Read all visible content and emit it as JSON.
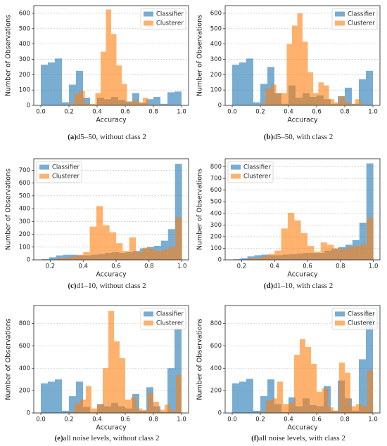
{
  "chart_data": [
    {
      "type": "histogram",
      "caption_label": "(a)",
      "caption": "d5–50, without class 2",
      "xlabel": "Accuracy",
      "ylabel": "Number of Observations",
      "xlim": [
        -0.05,
        1.05
      ],
      "xticks": [
        {
          "value": 0,
          "label": "0.0"
        },
        0.2,
        0.4,
        0.6,
        0.8,
        {
          "value": 1,
          "label": "1.0"
        }
      ],
      "ylim": [
        0,
        650
      ],
      "yticks": [
        0,
        100,
        200,
        300,
        400,
        500,
        600
      ],
      "grid": true,
      "legend": "upper right",
      "series": [
        {
          "name": "Classifier",
          "color": "#1f77b4",
          "alpha": 0.6,
          "bins": [
            0,
            0.05,
            0.1,
            0.15,
            0.2,
            0.25,
            0.3,
            0.35,
            0.4,
            0.45,
            0.5,
            0.55,
            0.6,
            0.65,
            0.7,
            0.75,
            0.8,
            0.85,
            0.9,
            0.95,
            1
          ],
          "values": [
            265,
            280,
            305,
            20,
            135,
            225,
            50,
            5,
            50,
            40,
            55,
            35,
            25,
            80,
            15,
            40,
            55,
            10,
            85,
            90
          ]
        },
        {
          "name": "Clusterer",
          "color": "#ff7f0e",
          "alpha": 0.6,
          "bins": [
            0.2,
            0.2375,
            0.275,
            0.3125,
            0.35,
            0.3875,
            0.425,
            0.4625,
            0.5,
            0.5375,
            0.575,
            0.6125,
            0.65,
            0.6875,
            0.725,
            0.7625,
            0.8,
            0.8375,
            0.875,
            0.9125,
            0.95
          ],
          "values": [
            10,
            75,
            95,
            10,
            10,
            80,
            350,
            625,
            465,
            260,
            140,
            20,
            35,
            20,
            50,
            5,
            5,
            0,
            0,
            5
          ]
        }
      ]
    },
    {
      "type": "histogram",
      "caption_label": "(b)",
      "caption": "d5–50, with class 2",
      "xlabel": "Accuracy",
      "ylabel": "Number of Observations",
      "xlim": [
        -0.05,
        1.05
      ],
      "xticks": [
        {
          "value": 0,
          "label": "0.0"
        },
        0.2,
        0.4,
        0.6,
        0.8,
        {
          "value": 1,
          "label": "1.0"
        }
      ],
      "ylim": [
        0,
        650
      ],
      "yticks": [
        0,
        100,
        200,
        300,
        400,
        500,
        600
      ],
      "grid": true,
      "legend": "upper right",
      "series": [
        {
          "name": "Classifier",
          "color": "#1f77b4",
          "alpha": 0.6,
          "bins": [
            0,
            0.05,
            0.1,
            0.15,
            0.2,
            0.25,
            0.3,
            0.35,
            0.4,
            0.45,
            0.5,
            0.55,
            0.6,
            0.65,
            0.7,
            0.75,
            0.8,
            0.85,
            0.9,
            0.95,
            1
          ],
          "values": [
            265,
            280,
            305,
            20,
            140,
            250,
            80,
            10,
            130,
            50,
            80,
            55,
            65,
            40,
            10,
            60,
            115,
            10,
            170,
            225
          ]
        },
        {
          "name": "Clusterer",
          "color": "#ff7f0e",
          "alpha": 0.6,
          "bins": [
            0.2,
            0.2375,
            0.275,
            0.3125,
            0.35,
            0.3875,
            0.425,
            0.4625,
            0.5,
            0.5375,
            0.575,
            0.6125,
            0.65,
            0.6875,
            0.725,
            0.7625,
            0.8,
            0.8375,
            0.875,
            0.9125,
            0.95
          ],
          "values": [
            10,
            110,
            135,
            80,
            80,
            400,
            520,
            600,
            415,
            215,
            80,
            150,
            130,
            40,
            20,
            60,
            20,
            10,
            40,
            5
          ]
        }
      ]
    },
    {
      "type": "histogram",
      "caption_label": "(c)",
      "caption": "d1–10, without class 2",
      "xlabel": "Accuracy",
      "ylabel": "Number of Observations",
      "xlim": [
        0.1,
        1.04
      ],
      "xticks": [
        0.2,
        0.4,
        0.6,
        0.8,
        {
          "value": 1,
          "label": "1.0"
        }
      ],
      "ylim": [
        0,
        790
      ],
      "yticks": [
        0,
        100,
        200,
        300,
        400,
        500,
        600,
        700
      ],
      "grid": true,
      "legend": "upper left",
      "series": [
        {
          "name": "Classifier",
          "color": "#1f77b4",
          "alpha": 0.6,
          "bins": [
            0.15,
            0.1925,
            0.235,
            0.2775,
            0.32,
            0.3625,
            0.405,
            0.4475,
            0.49,
            0.5325,
            0.575,
            0.6175,
            0.66,
            0.7025,
            0.745,
            0.7875,
            0.83,
            0.8725,
            0.915,
            0.9575,
            1
          ],
          "values": [
            5,
            20,
            35,
            40,
            40,
            35,
            35,
            40,
            45,
            55,
            60,
            55,
            60,
            70,
            90,
            100,
            110,
            150,
            240,
            750
          ]
        },
        {
          "name": "Clusterer",
          "color": "#ff7f0e",
          "alpha": 0.6,
          "bins": [
            0.2,
            0.24,
            0.28,
            0.32,
            0.36,
            0.4,
            0.44,
            0.48,
            0.52,
            0.56,
            0.6,
            0.64,
            0.68,
            0.72,
            0.76,
            0.8,
            0.84,
            0.88,
            0.92,
            0.96,
            1
          ],
          "values": [
            0,
            15,
            15,
            25,
            40,
            60,
            260,
            420,
            270,
            215,
            130,
            70,
            175,
            60,
            95,
            85,
            70,
            80,
            100,
            330
          ]
        }
      ]
    },
    {
      "type": "histogram",
      "caption_label": "(d)",
      "caption": "d1–10, with class 2",
      "xlabel": "Accuracy",
      "ylabel": "Number of Observations",
      "xlim": [
        0.1,
        1.04
      ],
      "xticks": [
        0.2,
        0.4,
        0.6,
        0.8,
        {
          "value": 1,
          "label": "1.0"
        }
      ],
      "ylim": [
        0,
        870
      ],
      "yticks": [
        0,
        100,
        200,
        300,
        400,
        500,
        600,
        700,
        800
      ],
      "grid": true,
      "legend": "upper left",
      "series": [
        {
          "name": "Classifier",
          "color": "#1f77b4",
          "alpha": 0.6,
          "bins": [
            0.15,
            0.1925,
            0.235,
            0.2775,
            0.32,
            0.3625,
            0.405,
            0.4475,
            0.49,
            0.5325,
            0.575,
            0.6175,
            0.66,
            0.7025,
            0.745,
            0.7875,
            0.83,
            0.8725,
            0.915,
            0.9575,
            1
          ],
          "values": [
            5,
            15,
            30,
            40,
            45,
            40,
            40,
            45,
            50,
            55,
            60,
            60,
            60,
            80,
            95,
            110,
            130,
            170,
            320,
            830
          ]
        },
        {
          "name": "Clusterer",
          "color": "#ff7f0e",
          "alpha": 0.6,
          "bins": [
            0.2,
            0.24,
            0.28,
            0.32,
            0.36,
            0.4,
            0.44,
            0.48,
            0.52,
            0.56,
            0.6,
            0.64,
            0.68,
            0.72,
            0.76,
            0.8,
            0.84,
            0.88,
            0.92,
            0.96,
            1
          ],
          "values": [
            0,
            15,
            15,
            30,
            50,
            80,
            270,
            405,
            340,
            230,
            120,
            70,
            150,
            130,
            100,
            90,
            110,
            120,
            130,
            360
          ]
        }
      ]
    },
    {
      "type": "histogram",
      "caption_label": "(e)",
      "caption": "all noise levels, without class 2",
      "xlabel": "Accuracy",
      "ylabel": "Number of Observations",
      "xlim": [
        -0.05,
        1.05
      ],
      "xticks": [
        {
          "value": 0,
          "label": "0.0"
        },
        0.2,
        0.4,
        0.6,
        0.8,
        {
          "value": 1,
          "label": "1.0"
        }
      ],
      "ylim": [
        0,
        960
      ],
      "yticks": [
        0,
        200,
        400,
        600,
        800
      ],
      "grid": true,
      "legend": "upper right",
      "series": [
        {
          "name": "Classifier",
          "color": "#1f77b4",
          "alpha": 0.6,
          "bins": [
            0,
            0.05,
            0.1,
            0.15,
            0.2,
            0.25,
            0.3,
            0.35,
            0.4,
            0.45,
            0.5,
            0.55,
            0.6,
            0.65,
            0.7,
            0.75,
            0.8,
            0.85,
            0.9,
            0.95,
            1
          ],
          "values": [
            265,
            280,
            300,
            20,
            150,
            280,
            55,
            5,
            80,
            60,
            90,
            60,
            40,
            170,
            20,
            230,
            60,
            10,
            400,
            755
          ]
        },
        {
          "name": "Clusterer",
          "color": "#ff7f0e",
          "alpha": 0.6,
          "bins": [
            0.2,
            0.24,
            0.28,
            0.32,
            0.36,
            0.4,
            0.44,
            0.48,
            0.52,
            0.56,
            0.6,
            0.64,
            0.68,
            0.72,
            0.76,
            0.8,
            0.84,
            0.88,
            0.92,
            0.96,
            1
          ],
          "values": [
            10,
            85,
            120,
            240,
            40,
            75,
            400,
            910,
            640,
            490,
            120,
            140,
            40,
            25,
            180,
            100,
            30,
            75,
            20,
            340
          ]
        }
      ]
    },
    {
      "type": "histogram",
      "caption_label": "(f)",
      "caption": "all noise levels, with class 2",
      "xlabel": "Accuracy",
      "ylabel": "Number of Observations",
      "xlim": [
        -0.05,
        1.05
      ],
      "xticks": [
        {
          "value": 0,
          "label": "0.0"
        },
        0.2,
        0.4,
        0.6,
        0.8,
        {
          "value": 1,
          "label": "1.0"
        }
      ],
      "ylim": [
        0,
        960
      ],
      "yticks": [
        0,
        200,
        400,
        600,
        800
      ],
      "grid": true,
      "legend": "upper right",
      "series": [
        {
          "name": "Classifier",
          "color": "#1f77b4",
          "alpha": 0.6,
          "bins": [
            0,
            0.05,
            0.1,
            0.15,
            0.2,
            0.25,
            0.3,
            0.35,
            0.4,
            0.45,
            0.5,
            0.55,
            0.6,
            0.65,
            0.7,
            0.75,
            0.8,
            0.85,
            0.9,
            0.95,
            1
          ],
          "values": [
            265,
            280,
            305,
            20,
            150,
            300,
            80,
            10,
            140,
            60,
            130,
            70,
            60,
            240,
            20,
            290,
            130,
            20,
            480,
            890
          ]
        },
        {
          "name": "Clusterer",
          "color": "#ff7f0e",
          "alpha": 0.6,
          "bins": [
            0.2,
            0.24,
            0.28,
            0.32,
            0.36,
            0.4,
            0.44,
            0.48,
            0.52,
            0.56,
            0.6,
            0.64,
            0.68,
            0.72,
            0.76,
            0.8,
            0.84,
            0.88,
            0.92,
            0.96,
            1
          ],
          "values": [
            10,
            110,
            130,
            280,
            80,
            90,
            520,
            660,
            590,
            440,
            190,
            220,
            50,
            20,
            450,
            360,
            60,
            80,
            60,
            380
          ]
        }
      ]
    }
  ]
}
